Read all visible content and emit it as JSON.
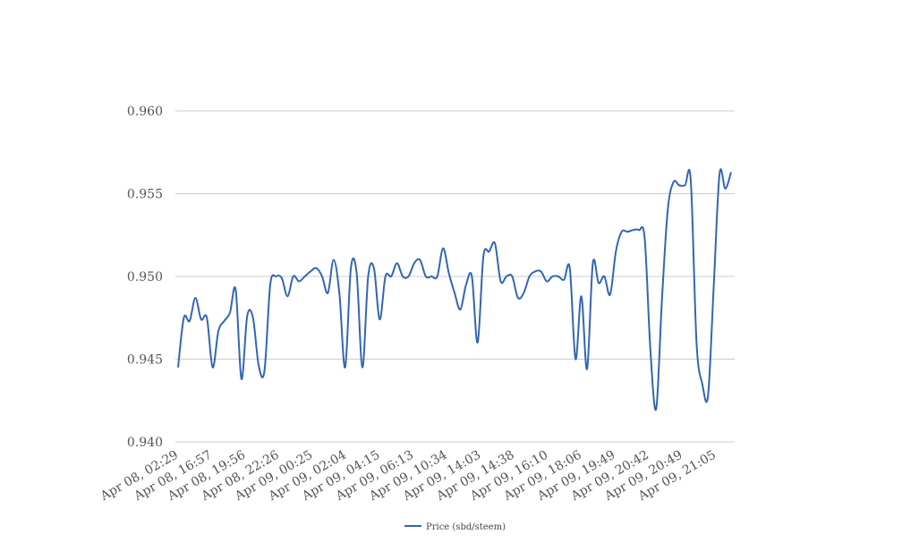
{
  "chart_data": {
    "type": "line",
    "ylim": [
      0.94,
      0.96
    ],
    "y_ticks": [
      "0.940",
      "0.945",
      "0.950",
      "0.955",
      "0.960"
    ],
    "x_tick_labels": [
      "Apr 08, 02:29",
      "Apr 08, 16:57",
      "Apr 08, 19:56",
      "Apr 08, 22:26",
      "Apr 09, 00:25",
      "Apr 09, 02:04",
      "Apr 09, 04:15",
      "Apr 09, 06:13",
      "Apr 09, 10:34",
      "Apr 09, 14:03",
      "Apr 09, 14:38",
      "Apr 09, 16:10",
      "Apr 09, 18:06",
      "Apr 09, 19:49",
      "Apr 09, 20:42",
      "Apr 09, 20:49",
      "Apr 09, 21:05"
    ],
    "grid": true,
    "legend_position": "bottom-center",
    "series": [
      {
        "name": "Price (sbd/steem)",
        "color": "#3465b4",
        "values": [
          0.9445,
          0.9475,
          0.9473,
          0.9487,
          0.9474,
          0.9475,
          0.9445,
          0.9467,
          0.9473,
          0.9478,
          0.9492,
          0.9438,
          0.9476,
          0.9475,
          0.9446,
          0.9443,
          0.9495,
          0.95,
          0.9499,
          0.9488,
          0.95,
          0.9497,
          0.95,
          0.9503,
          0.9505,
          0.95,
          0.949,
          0.951,
          0.949,
          0.9445,
          0.9505,
          0.9502,
          0.9445,
          0.95,
          0.9505,
          0.9474,
          0.95,
          0.95,
          0.9508,
          0.95,
          0.95,
          0.9508,
          0.951,
          0.95,
          0.95,
          0.95,
          0.9517,
          0.9502,
          0.949,
          0.948,
          0.9495,
          0.95,
          0.946,
          0.9512,
          0.9515,
          0.952,
          0.9497,
          0.95,
          0.95,
          0.9487,
          0.949,
          0.95,
          0.9503,
          0.9503,
          0.9497,
          0.95,
          0.95,
          0.9498,
          0.9505,
          0.945,
          0.9488,
          0.9444,
          0.9508,
          0.9496,
          0.95,
          0.9489,
          0.9515,
          0.9527,
          0.9527,
          0.9528,
          0.9528,
          0.9523,
          0.9455,
          0.942,
          0.9486,
          0.954,
          0.9557,
          0.9555,
          0.9555,
          0.9558,
          0.946,
          0.9435,
          0.9428,
          0.9495,
          0.9562,
          0.9553,
          0.9563
        ]
      }
    ]
  }
}
